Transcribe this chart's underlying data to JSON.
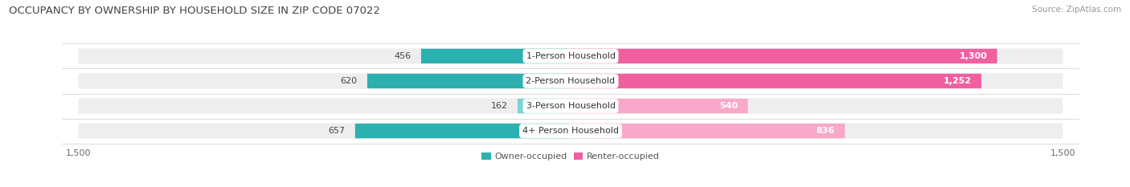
{
  "title": "OCCUPANCY BY OWNERSHIP BY HOUSEHOLD SIZE IN ZIP CODE 07022",
  "source": "Source: ZipAtlas.com",
  "categories": [
    "1-Person Household",
    "2-Person Household",
    "3-Person Household",
    "4+ Person Household"
  ],
  "owner_values": [
    456,
    620,
    162,
    657
  ],
  "renter_values": [
    1300,
    1252,
    540,
    836
  ],
  "owner_color_dark": "#2db0b0",
  "owner_color_light": "#7dd4d4",
  "renter_color_dark": "#f060a0",
  "renter_color_light": "#f8a8c8",
  "bg_row_color": "#eeeeee",
  "axis_max": 1500,
  "legend_owner": "Owner-occupied",
  "legend_renter": "Renter-occupied",
  "bg_color": "#ffffff",
  "bar_height": 0.62,
  "title_fontsize": 9.5,
  "source_fontsize": 7.5,
  "label_fontsize": 8,
  "tick_fontsize": 8,
  "category_fontsize": 8
}
